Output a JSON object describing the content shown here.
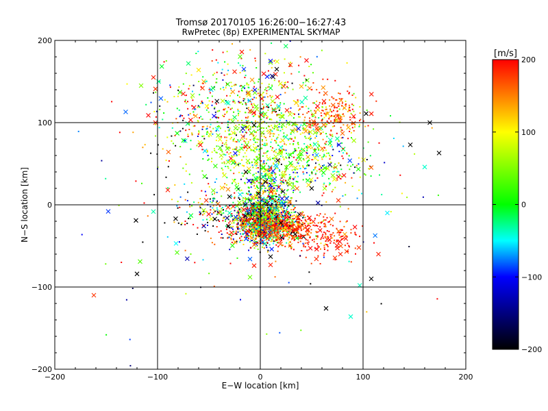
{
  "chart_data": {
    "type": "scatter",
    "title": "Tromsø 20170105 16:26:00−16:27:43",
    "subtitle": "RwPretec (8p) EXPERIMENTAL SKYMAP",
    "xlabel": "E−W location [km]",
    "ylabel": "N−S location [km]",
    "xlim": [
      -200,
      200
    ],
    "ylim": [
      -200,
      200
    ],
    "xticks": [
      -200,
      -100,
      0,
      100,
      200
    ],
    "yticks": [
      -200,
      -100,
      0,
      100,
      200
    ],
    "xtick_labels": [
      "−200",
      "−100",
      "0",
      "100",
      "200"
    ],
    "ytick_labels": [
      "−200",
      "−100",
      "0",
      "100",
      "200"
    ],
    "grid": true,
    "colorbar": {
      "label": "[m/s]",
      "range": [
        -200,
        200
      ],
      "ticks": [
        200,
        100,
        0,
        -100,
        -200
      ],
      "tick_labels": [
        "200",
        "100",
        "0",
        "−100",
        "−200"
      ],
      "colors": [
        "#ff0000",
        "#ffff00",
        "#00ff00",
        "#00ffff",
        "#0000ff",
        "#000000"
      ]
    },
    "markers": {
      "x": "cross",
      "small": "dot"
    },
    "points": [
      {
        "x": -162,
        "y": -110,
        "v": 180,
        "m": "x"
      },
      {
        "x": -148,
        "y": -8,
        "v": -90,
        "m": "x"
      },
      {
        "x": -131,
        "y": 113,
        "v": -80,
        "m": "x"
      },
      {
        "x": -121,
        "y": -19,
        "v": -200,
        "m": "x"
      },
      {
        "x": -120,
        "y": -84,
        "v": -200,
        "m": "x"
      },
      {
        "x": -117,
        "y": -69,
        "v": 30,
        "m": "x"
      },
      {
        "x": -116,
        "y": 145,
        "v": 50,
        "m": "x"
      },
      {
        "x": -104,
        "y": 155,
        "v": 190,
        "m": "x"
      },
      {
        "x": -102,
        "y": 141,
        "v": 180,
        "m": "x"
      },
      {
        "x": -99,
        "y": 150,
        "v": -30,
        "m": "x"
      },
      {
        "x": -102,
        "y": 100,
        "v": 190,
        "m": "x"
      },
      {
        "x": -90,
        "y": 18,
        "v": 190,
        "m": "x"
      },
      {
        "x": -82,
        "y": -47,
        "v": -50,
        "m": "x"
      },
      {
        "x": -81,
        "y": -58,
        "v": 30,
        "m": "x"
      },
      {
        "x": -75,
        "y": 135,
        "v": 190,
        "m": "x"
      },
      {
        "x": -70,
        "y": 172,
        "v": -20,
        "m": "x"
      },
      {
        "x": -66,
        "y": 133,
        "v": 60,
        "m": "x"
      },
      {
        "x": -63,
        "y": 108,
        "v": 140,
        "m": "x"
      },
      {
        "x": -60,
        "y": 164,
        "v": 110,
        "m": "x"
      },
      {
        "x": -55,
        "y": 150,
        "v": 130,
        "m": "x"
      },
      {
        "x": -52,
        "y": 120,
        "v": 100,
        "m": "x"
      },
      {
        "x": -46,
        "y": 142,
        "v": -10,
        "m": "x"
      },
      {
        "x": -45,
        "y": 108,
        "v": -100,
        "m": "x"
      },
      {
        "x": -42,
        "y": 92,
        "v": -50,
        "m": "x"
      },
      {
        "x": -38,
        "y": 60,
        "v": 70,
        "m": "x"
      },
      {
        "x": -35,
        "y": 36,
        "v": 80,
        "m": "x"
      },
      {
        "x": -30,
        "y": 10,
        "v": -200,
        "m": "x"
      },
      {
        "x": -31,
        "y": -26,
        "v": -200,
        "m": "x"
      },
      {
        "x": -28,
        "y": -34,
        "v": 180,
        "m": "x"
      },
      {
        "x": -25,
        "y": 162,
        "v": 190,
        "m": "x"
      },
      {
        "x": -18,
        "y": 186,
        "v": 190,
        "m": "x"
      },
      {
        "x": -16,
        "y": 165,
        "v": -90,
        "m": "x"
      },
      {
        "x": -12,
        "y": 136,
        "v": 160,
        "m": "x"
      },
      {
        "x": -8,
        "y": 152,
        "v": 140,
        "m": "x"
      },
      {
        "x": -10,
        "y": 114,
        "v": 180,
        "m": "x"
      },
      {
        "x": -6,
        "y": 97,
        "v": -200,
        "m": "x"
      },
      {
        "x": -14,
        "y": 40,
        "v": -200,
        "m": "x"
      },
      {
        "x": -11,
        "y": 29,
        "v": -100,
        "m": "x"
      },
      {
        "x": -10,
        "y": -66,
        "v": -80,
        "m": "x"
      },
      {
        "x": -10,
        "y": -88,
        "v": 40,
        "m": "x"
      },
      {
        "x": -6,
        "y": -74,
        "v": 190,
        "m": "x"
      },
      {
        "x": 2,
        "y": -34,
        "v": 190,
        "m": "x"
      },
      {
        "x": 5,
        "y": 28,
        "v": -200,
        "m": "x"
      },
      {
        "x": 10,
        "y": 175,
        "v": -100,
        "m": "x"
      },
      {
        "x": 16,
        "y": 165,
        "v": -200,
        "m": "x"
      },
      {
        "x": 10,
        "y": 142,
        "v": -10,
        "m": "x"
      },
      {
        "x": 12,
        "y": 126,
        "v": 70,
        "m": "x"
      },
      {
        "x": 18,
        "y": 120,
        "v": -60,
        "m": "x"
      },
      {
        "x": 10,
        "y": -63,
        "v": -200,
        "m": "x"
      },
      {
        "x": 10,
        "y": -73,
        "v": 190,
        "m": "x"
      },
      {
        "x": 16,
        "y": -6,
        "v": -40,
        "m": "x"
      },
      {
        "x": 20,
        "y": -22,
        "v": -200,
        "m": "x"
      },
      {
        "x": 26,
        "y": 115,
        "v": 190,
        "m": "x"
      },
      {
        "x": 35,
        "y": 124,
        "v": 120,
        "m": "x"
      },
      {
        "x": 40,
        "y": 144,
        "v": 130,
        "m": "x"
      },
      {
        "x": 44,
        "y": 130,
        "v": -30,
        "m": "x"
      },
      {
        "x": 50,
        "y": 20,
        "v": -200,
        "m": "x"
      },
      {
        "x": 62,
        "y": 126,
        "v": 190,
        "m": "x"
      },
      {
        "x": 64,
        "y": -126,
        "v": -200,
        "m": "x"
      },
      {
        "x": 65,
        "y": -42,
        "v": 190,
        "m": "x"
      },
      {
        "x": 75,
        "y": 108,
        "v": 180,
        "m": "x"
      },
      {
        "x": 78,
        "y": -60,
        "v": 190,
        "m": "x"
      },
      {
        "x": 80,
        "y": 87,
        "v": 160,
        "m": "x"
      },
      {
        "x": 88,
        "y": -136,
        "v": -40,
        "m": "x"
      },
      {
        "x": 96,
        "y": -52,
        "v": 180,
        "m": "x"
      },
      {
        "x": 103,
        "y": 111,
        "v": -200,
        "m": "x"
      },
      {
        "x": 108,
        "y": -90,
        "v": -200,
        "m": "x"
      },
      {
        "x": 115,
        "y": -60,
        "v": 190,
        "m": "x"
      },
      {
        "x": 146,
        "y": 73,
        "v": -200,
        "m": "x"
      },
      {
        "x": 160,
        "y": 46,
        "v": -40,
        "m": "x"
      },
      {
        "x": 165,
        "y": 100,
        "v": -200,
        "m": "x"
      },
      {
        "x": 174,
        "y": 63,
        "v": -200,
        "m": "x"
      }
    ],
    "clusters": [
      {
        "cx": 5,
        "cy": -20,
        "sx": 14,
        "sy": 13,
        "n": 1100,
        "v": 20,
        "vs": 140
      },
      {
        "cx": 20,
        "cy": -28,
        "sx": 26,
        "sy": 10,
        "n": 420,
        "v": 175,
        "vs": 35
      },
      {
        "cx": 8,
        "cy": 15,
        "sx": 12,
        "sy": 20,
        "n": 350,
        "v": 40,
        "vs": 120
      },
      {
        "cx": 10,
        "cy": 75,
        "sx": 38,
        "sy": 28,
        "n": 650,
        "v": 60,
        "vs": 55
      },
      {
        "cx": 70,
        "cy": 110,
        "sx": 16,
        "sy": 12,
        "n": 180,
        "v": 175,
        "vs": 35
      },
      {
        "cx": -40,
        "cy": 110,
        "sx": 35,
        "sy": 35,
        "n": 260,
        "v": 60,
        "vs": 150
      },
      {
        "cx": 0,
        "cy": 140,
        "sx": 40,
        "sy": 25,
        "n": 200,
        "v": 80,
        "vs": 130
      },
      {
        "cx": -30,
        "cy": -10,
        "sx": 25,
        "sy": 14,
        "n": 220,
        "v": 0,
        "vs": 170
      },
      {
        "cx": 65,
        "cy": -40,
        "sx": 22,
        "sy": 12,
        "n": 130,
        "v": 190,
        "vs": 20
      },
      {
        "cx": 70,
        "cy": 45,
        "sx": 25,
        "sy": 20,
        "n": 130,
        "v": 30,
        "vs": 130
      },
      {
        "cx": 0,
        "cy": 0,
        "sx": 80,
        "sy": 80,
        "n": 150,
        "v": 0,
        "vs": 180
      }
    ]
  }
}
